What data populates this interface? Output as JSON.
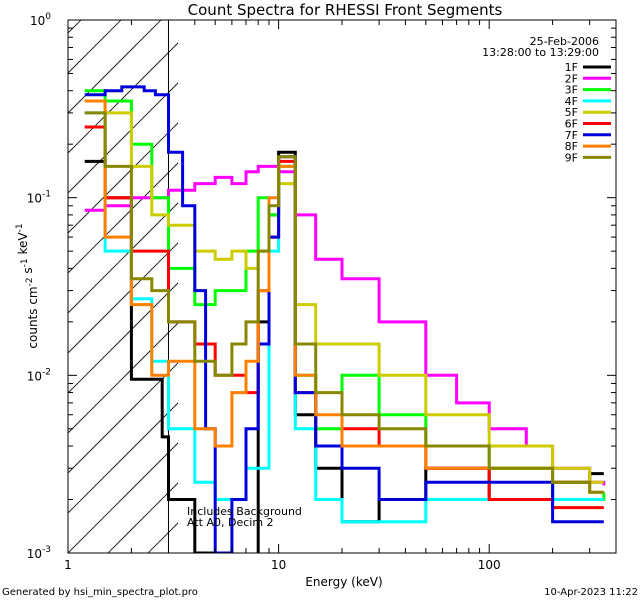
{
  "chart_data": {
    "type": "line",
    "title": "Count Spectra for RHESSI Front Segments",
    "xlabel": "Energy (keV)",
    "ylabel": "counts cm-2 s-1 keV-1",
    "xscale": "log",
    "yscale": "log",
    "xlim": [
      1,
      400
    ],
    "ylim": [
      0.001,
      1
    ],
    "x_ticks": [
      {
        "value": 1,
        "label": "1"
      },
      {
        "value": 10,
        "label": "10"
      },
      {
        "value": 100,
        "label": "100"
      }
    ],
    "y_ticks": [
      {
        "value": 1,
        "label": "10",
        "exp": "0"
      },
      {
        "value": 0.1,
        "label": "10",
        "exp": "-1"
      },
      {
        "value": 0.01,
        "label": "10",
        "exp": "-2"
      },
      {
        "value": 0.001,
        "label": "10",
        "exp": "-3"
      }
    ],
    "date": "25-Feb-2006",
    "time_range": "13:28:00 to 13:29:00",
    "annotations": [
      "Includes Background",
      "Att A0, Decim 2"
    ],
    "hatched_region": {
      "x_min": 1,
      "x_max": 3
    },
    "footer_left": "Generated by hsi_min_spectra_plot.pro",
    "footer_right": "10-Apr-2023 11:22",
    "series": [
      {
        "name": "1F",
        "color": "#000000",
        "points": [
          [
            1.2,
            0.16
          ],
          [
            1.5,
            0.1
          ],
          [
            2,
            0.0095
          ],
          [
            2.5,
            0.0095
          ],
          [
            2.8,
            0.0045
          ],
          [
            3,
            0.002
          ],
          [
            4,
            0.001
          ],
          [
            5,
            0.00095
          ],
          [
            8,
            0.02
          ],
          [
            9,
            0.08
          ],
          [
            10,
            0.18
          ],
          [
            12,
            0.006
          ],
          [
            15,
            0.003
          ],
          [
            20,
            0.0015
          ],
          [
            30,
            0.002
          ],
          [
            50,
            0.003
          ],
          [
            100,
            0.002
          ],
          [
            200,
            0.0025
          ],
          [
            300,
            0.0028
          ],
          [
            350,
            0.0028
          ]
        ]
      },
      {
        "name": "2F",
        "color": "#ff00ff",
        "points": [
          [
            1.2,
            0.085
          ],
          [
            1.5,
            0.09
          ],
          [
            2,
            0.1
          ],
          [
            2.5,
            0.1
          ],
          [
            3,
            0.11
          ],
          [
            4,
            0.12
          ],
          [
            5,
            0.13
          ],
          [
            6,
            0.12
          ],
          [
            7,
            0.14
          ],
          [
            8,
            0.15
          ],
          [
            9,
            0.15
          ],
          [
            10,
            0.14
          ],
          [
            12,
            0.08
          ],
          [
            15,
            0.045
          ],
          [
            20,
            0.035
          ],
          [
            30,
            0.02
          ],
          [
            50,
            0.01
          ],
          [
            70,
            0.007
          ],
          [
            100,
            0.005
          ],
          [
            150,
            0.004
          ],
          [
            200,
            0.003
          ],
          [
            300,
            0.0025
          ],
          [
            350,
            0.0024
          ]
        ]
      },
      {
        "name": "3F",
        "color": "#00ff00",
        "points": [
          [
            1.2,
            0.4
          ],
          [
            1.5,
            0.35
          ],
          [
            2,
            0.2
          ],
          [
            2.5,
            0.1
          ],
          [
            3,
            0.04
          ],
          [
            4,
            0.025
          ],
          [
            5,
            0.03
          ],
          [
            6,
            0.03
          ],
          [
            7,
            0.05
          ],
          [
            8,
            0.1
          ],
          [
            9,
            0.08
          ],
          [
            10,
            0.15
          ],
          [
            12,
            0.01
          ],
          [
            15,
            0.005
          ],
          [
            20,
            0.01
          ],
          [
            30,
            0.006
          ],
          [
            50,
            0.004
          ],
          [
            100,
            0.003
          ],
          [
            200,
            0.002
          ],
          [
            300,
            0.002
          ],
          [
            350,
            0.0022
          ]
        ]
      },
      {
        "name": "4F",
        "color": "#00ffff",
        "points": [
          [
            1.2,
            0.3
          ],
          [
            1.5,
            0.05
          ],
          [
            2,
            0.027
          ],
          [
            2.5,
            0.012
          ],
          [
            3,
            0.005
          ],
          [
            4,
            0.0025
          ],
          [
            5,
            0.002
          ],
          [
            7,
            0.003
          ],
          [
            9,
            0.05
          ],
          [
            10,
            0.15
          ],
          [
            12,
            0.005
          ],
          [
            15,
            0.002
          ],
          [
            20,
            0.0015
          ],
          [
            50,
            0.002
          ],
          [
            100,
            0.002
          ],
          [
            200,
            0.002
          ],
          [
            300,
            0.002
          ],
          [
            350,
            0.002
          ]
        ]
      },
      {
        "name": "5F",
        "color": "#cccc00",
        "points": [
          [
            1.2,
            0.35
          ],
          [
            1.5,
            0.3
          ],
          [
            2,
            0.15
          ],
          [
            2.5,
            0.08
          ],
          [
            3,
            0.07
          ],
          [
            4,
            0.05
          ],
          [
            5,
            0.045
          ],
          [
            6,
            0.05
          ],
          [
            7,
            0.04
          ],
          [
            8,
            0.05
          ],
          [
            9,
            0.06
          ],
          [
            10,
            0.12
          ],
          [
            12,
            0.025
          ],
          [
            15,
            0.015
          ],
          [
            20,
            0.015
          ],
          [
            30,
            0.01
          ],
          [
            50,
            0.006
          ],
          [
            100,
            0.004
          ],
          [
            200,
            0.003
          ],
          [
            300,
            0.0025
          ],
          [
            350,
            0.0025
          ]
        ]
      },
      {
        "name": "6F",
        "color": "#ff0000",
        "points": [
          [
            1.2,
            0.25
          ],
          [
            1.5,
            0.1
          ],
          [
            2,
            0.05
          ],
          [
            2.5,
            0.05
          ],
          [
            3,
            0.02
          ],
          [
            4,
            0.015
          ],
          [
            5,
            0.01
          ],
          [
            6,
            0.01
          ],
          [
            7,
            0.008
          ],
          [
            8,
            0.03
          ],
          [
            9,
            0.06
          ],
          [
            10,
            0.16
          ],
          [
            12,
            0.008
          ],
          [
            15,
            0.004
          ],
          [
            20,
            0.005
          ],
          [
            30,
            0.004
          ],
          [
            50,
            0.003
          ],
          [
            100,
            0.002
          ],
          [
            200,
            0.0018
          ],
          [
            300,
            0.0018
          ],
          [
            350,
            0.0018
          ]
        ]
      },
      {
        "name": "7F",
        "color": "#0000dd",
        "points": [
          [
            1.2,
            0.38
          ],
          [
            1.5,
            0.4
          ],
          [
            1.8,
            0.42
          ],
          [
            2,
            0.42
          ],
          [
            2.3,
            0.4
          ],
          [
            2.6,
            0.38
          ],
          [
            3,
            0.18
          ],
          [
            3.5,
            0.09
          ],
          [
            4,
            0.03
          ],
          [
            4.5,
            0.005
          ],
          [
            5,
            0.001
          ],
          [
            6,
            0.002
          ],
          [
            7,
            0.005
          ],
          [
            8,
            0.015
          ],
          [
            9,
            0.06
          ],
          [
            10,
            0.17
          ],
          [
            12,
            0.008
          ],
          [
            15,
            0.004
          ],
          [
            20,
            0.003
          ],
          [
            30,
            0.002
          ],
          [
            50,
            0.0025
          ],
          [
            100,
            0.0025
          ],
          [
            200,
            0.0015
          ],
          [
            300,
            0.0015
          ],
          [
            350,
            0.0015
          ]
        ]
      },
      {
        "name": "8F",
        "color": "#ff8000",
        "points": [
          [
            1.2,
            0.35
          ],
          [
            1.5,
            0.06
          ],
          [
            2,
            0.025
          ],
          [
            2.5,
            0.01
          ],
          [
            3,
            0.012
          ],
          [
            4,
            0.005
          ],
          [
            5,
            0.004
          ],
          [
            6,
            0.008
          ],
          [
            7,
            0.012
          ],
          [
            8,
            0.03
          ],
          [
            9,
            0.1
          ],
          [
            10,
            0.15
          ],
          [
            12,
            0.01
          ],
          [
            15,
            0.006
          ],
          [
            20,
            0.004
          ],
          [
            30,
            0.004
          ],
          [
            50,
            0.003
          ],
          [
            100,
            0.003
          ],
          [
            200,
            0.0025
          ],
          [
            300,
            0.0022
          ],
          [
            350,
            0.0022
          ]
        ]
      },
      {
        "name": "9F",
        "color": "#888800",
        "points": [
          [
            1.2,
            0.3
          ],
          [
            1.5,
            0.15
          ],
          [
            2,
            0.035
          ],
          [
            2.5,
            0.03
          ],
          [
            3,
            0.02
          ],
          [
            4,
            0.012
          ],
          [
            5,
            0.01
          ],
          [
            6,
            0.015
          ],
          [
            7,
            0.02
          ],
          [
            8,
            0.05
          ],
          [
            9,
            0.09
          ],
          [
            10,
            0.17
          ],
          [
            12,
            0.015
          ],
          [
            15,
            0.008
          ],
          [
            20,
            0.006
          ],
          [
            30,
            0.005
          ],
          [
            50,
            0.004
          ],
          [
            100,
            0.003
          ],
          [
            200,
            0.0025
          ],
          [
            300,
            0.0022
          ],
          [
            350,
            0.0022
          ]
        ]
      }
    ]
  }
}
